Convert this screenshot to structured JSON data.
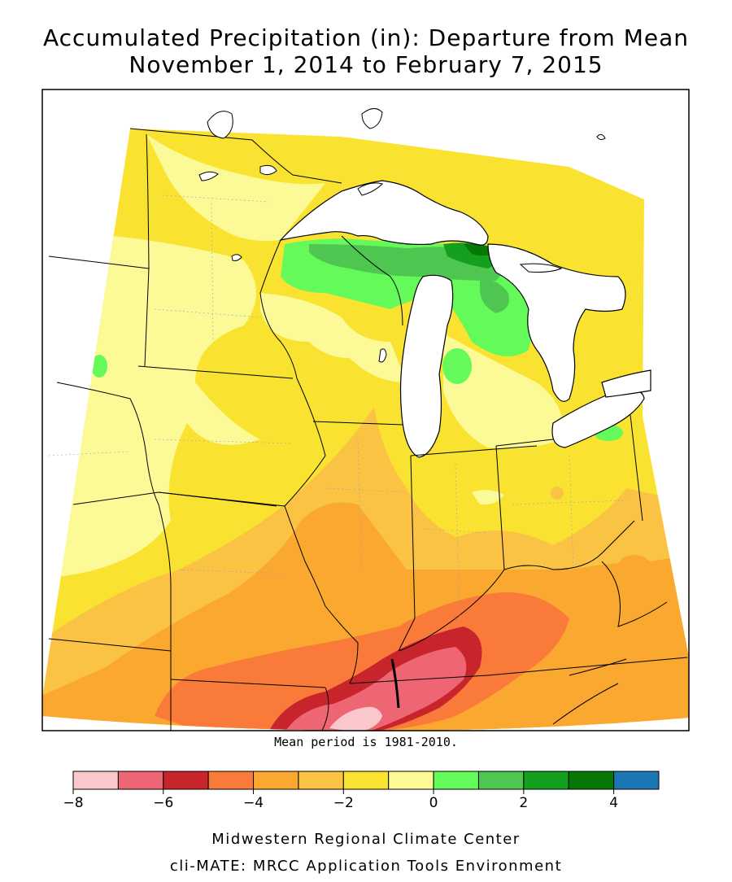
{
  "title": {
    "line1": "Accumulated Precipitation (in): Departure from Mean",
    "line2": "November 1, 2014 to February 7, 2015"
  },
  "map_note": "Mean period is 1981-2010.",
  "legend": {
    "colors": [
      "#fac8ca",
      "#ee6674",
      "#c8242c",
      "#fa7a3a",
      "#faa830",
      "#fbc344",
      "#fae330",
      "#fbfa96",
      "#64fa5a",
      "#4ec650",
      "#14a01e",
      "#067806",
      "#1c78b4"
    ],
    "tick_values": [
      -8,
      -6,
      -4,
      -2,
      0,
      2,
      4
    ],
    "tick_labels": [
      "−8",
      "−6",
      "−4",
      "−2",
      "0",
      "2",
      "4"
    ],
    "min": -8,
    "max": 5
  },
  "credits": {
    "line1": "Midwestern Regional Climate Center",
    "line2": "cli-MATE: MRCC Application Tools Environment"
  },
  "map_colors": {
    "dry_extreme": "#fac8ca",
    "dry_severe": "#ee6674",
    "dry_deep": "#c8242c",
    "dry_orange": "#fa7a3a",
    "dry_mid": "#faa830",
    "dry_light": "#fbc344",
    "dry_yellow": "#fae330",
    "near_normal": "#fbfa96",
    "wet_light": "#64fa5a",
    "wet_mid": "#4ec650",
    "wet_deep": "#067806",
    "lake": "#ffffff"
  }
}
